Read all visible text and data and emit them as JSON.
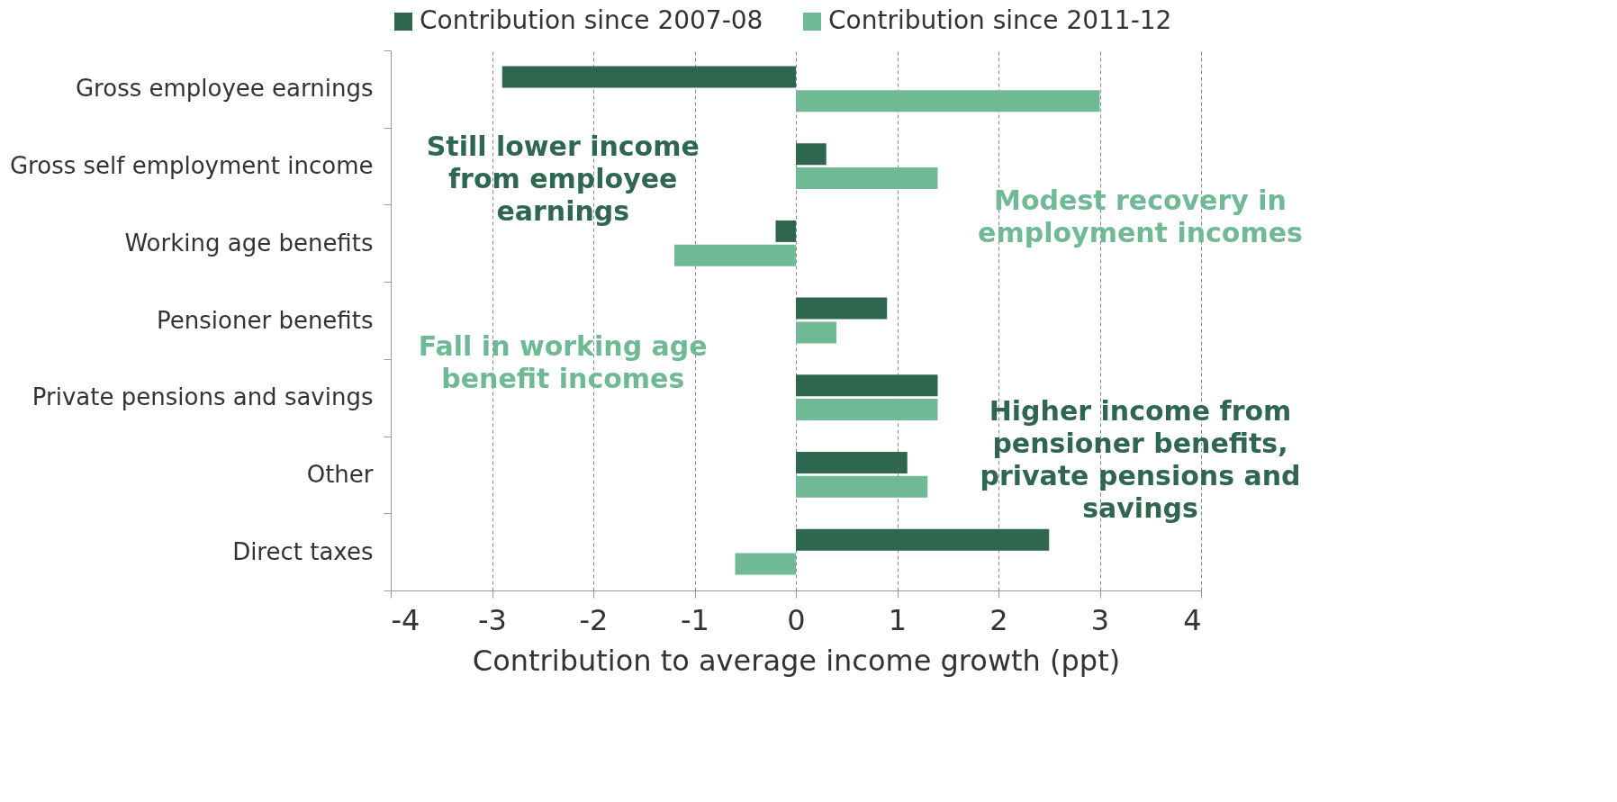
{
  "chart_data": {
    "type": "bar",
    "orientation": "horizontal",
    "categories": [
      "Gross employee earnings",
      "Gross self employment income",
      "Working age benefits",
      "Pensioner benefits",
      "Private pensions and savings",
      "Other",
      "Direct taxes"
    ],
    "series": [
      {
        "name": "Contribution since 2007-08",
        "color": "#2e6650",
        "values": [
          -2.9,
          0.3,
          -0.2,
          0.9,
          1.4,
          1.1,
          2.5
        ]
      },
      {
        "name": "Contribution since 2011-12",
        "color": "#70b995",
        "values": [
          3.0,
          1.4,
          -1.2,
          0.4,
          1.4,
          1.3,
          -0.6
        ]
      }
    ],
    "xlim": [
      -4,
      4
    ],
    "xticks": [
      -4,
      -3,
      -2,
      -1,
      0,
      1,
      2,
      3,
      4
    ],
    "xlabel": "Contribution to average income growth (ppt)",
    "grid": "x",
    "legend": "top",
    "annotations": [
      "Still lower income from employee earnings",
      "Fall in working age benefit incomes",
      "Modest recovery in employment incomes",
      "Higher income from pensioner benefits, private pensions and savings"
    ]
  }
}
